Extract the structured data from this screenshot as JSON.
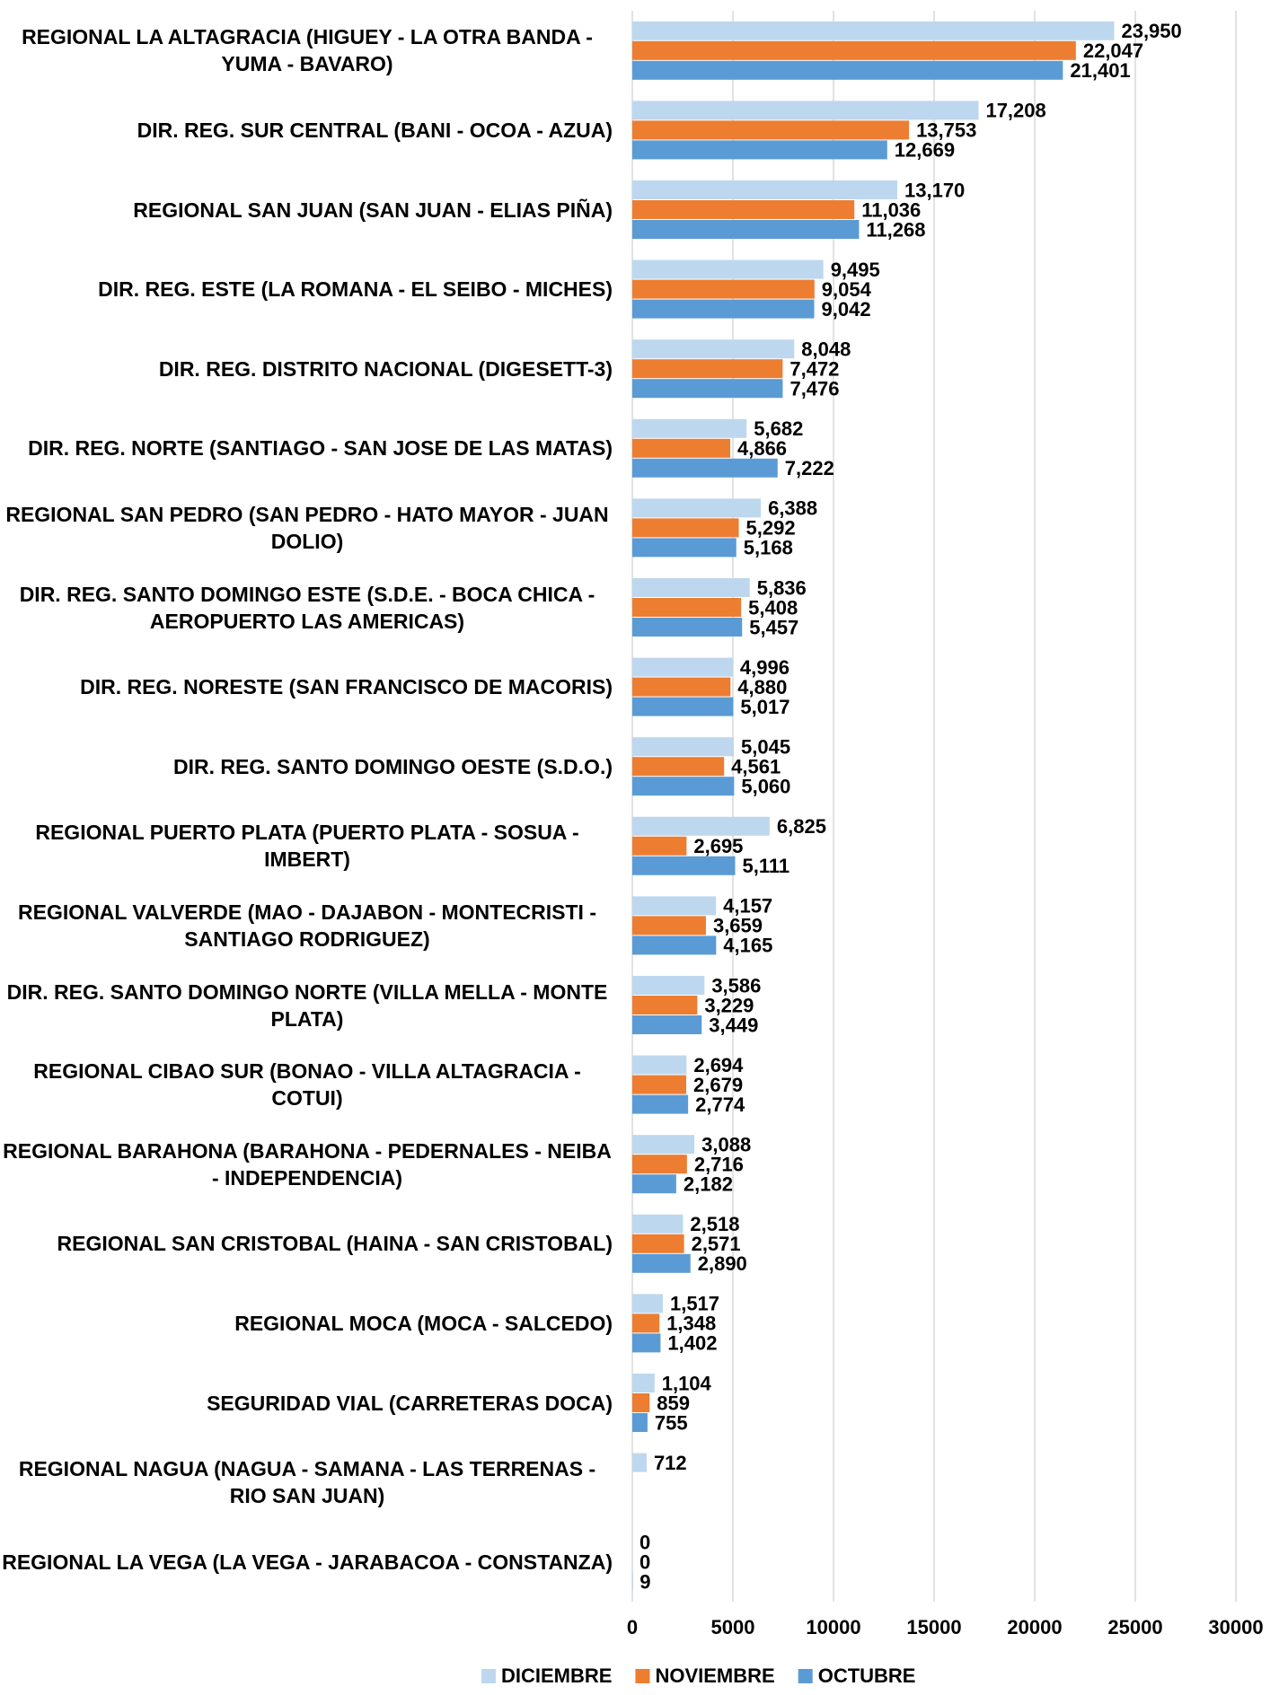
{
  "chart_data": {
    "type": "barh",
    "categories": [
      "REGIONAL LA ALTAGRACIA (HIGUEY - LA OTRA BANDA - YUMA - BAVARO)",
      "DIR. REG. SUR CENTRAL (BANI - OCOA - AZUA)",
      "REGIONAL SAN JUAN (SAN JUAN - ELIAS PIÑA)",
      "DIR. REG. ESTE (LA ROMANA - EL SEIBO - MICHES)",
      "DIR. REG. DISTRITO NACIONAL (DIGESETT-3)",
      "DIR. REG. NORTE (SANTIAGO - SAN JOSE DE LAS MATAS)",
      "REGIONAL SAN PEDRO (SAN PEDRO - HATO MAYOR - JUAN DOLIO)",
      "DIR. REG. SANTO DOMINGO ESTE (S.D.E. - BOCA CHICA - AEROPUERTO LAS AMERICAS)",
      "DIR. REG. NORESTE (SAN FRANCISCO DE MACORIS)",
      "DIR. REG. SANTO DOMINGO OESTE (S.D.O.)",
      "REGIONAL PUERTO PLATA (PUERTO PLATA - SOSUA - IMBERT)",
      "REGIONAL VALVERDE (MAO - DAJABON - MONTECRISTI - SANTIAGO RODRIGUEZ)",
      "DIR. REG. SANTO DOMINGO NORTE (VILLA MELLA - MONTE PLATA)",
      "REGIONAL CIBAO SUR (BONAO - VILLA ALTAGRACIA - COTUI)",
      "REGIONAL BARAHONA (BARAHONA - PEDERNALES - NEIBA - INDEPENDENCIA)",
      "REGIONAL SAN CRISTOBAL (HAINA - SAN CRISTOBAL)",
      "REGIONAL MOCA (MOCA - SALCEDO)",
      "SEGURIDAD VIAL (CARRETERAS DOCA)",
      "REGIONAL NAGUA (NAGUA - SAMANA - LAS TERRENAS - RIO SAN JUAN)",
      "REGIONAL LA VEGA (LA VEGA - JARABACOA - CONSTANZA)"
    ],
    "series": [
      {
        "name": "DICIEMBRE",
        "color": "#bdd7ee",
        "values": [
          23950,
          17208,
          13170,
          9495,
          8048,
          5682,
          6388,
          5836,
          4996,
          5045,
          6825,
          4157,
          3586,
          2694,
          3088,
          2518,
          1517,
          1104,
          712,
          0
        ],
        "value_labels": [
          "23,950",
          "17,208",
          "13,170",
          "9,495",
          "8,048",
          "5,682",
          "6,388",
          "5,836",
          "4,996",
          "5,045",
          "6,825",
          "4,157",
          "3,586",
          "2,694",
          "3,088",
          "2,518",
          "1,517",
          "1,104",
          "712",
          "0"
        ]
      },
      {
        "name": "NOVIEMBRE",
        "color": "#ed7d31",
        "values": [
          22047,
          13753,
          11036,
          9054,
          7472,
          4866,
          5292,
          5408,
          4880,
          4561,
          2695,
          3659,
          3229,
          2679,
          2716,
          2571,
          1348,
          859,
          null,
          0
        ],
        "value_labels": [
          "22,047",
          "13,753",
          "11,036",
          "9,054",
          "7,472",
          "4,866",
          "5,292",
          "5,408",
          "4,880",
          "4,561",
          "2,695",
          "3,659",
          "3,229",
          "2,679",
          "2,716",
          "2,571",
          "1,348",
          "859",
          null,
          "0"
        ]
      },
      {
        "name": "OCTUBRE",
        "color": "#5b9bd5",
        "values": [
          21401,
          12669,
          11268,
          9042,
          7476,
          7222,
          5168,
          5457,
          5017,
          5060,
          5111,
          4165,
          3449,
          2774,
          2182,
          2890,
          1402,
          755,
          null,
          9
        ],
        "value_labels": [
          "21,401",
          "12,669",
          "11,268",
          "9,042",
          "7,476",
          "7,222",
          "5,168",
          "5,457",
          "5,017",
          "5,060",
          "5,111",
          "4,165",
          "3,449",
          "2,774",
          "2,182",
          "2,890",
          "1,402",
          "755",
          null,
          "9"
        ]
      }
    ],
    "xlim": [
      0,
      30000
    ],
    "xticks": [
      0,
      5000,
      10000,
      15000,
      20000,
      25000,
      30000
    ],
    "grid": true,
    "legend": "bottom"
  }
}
